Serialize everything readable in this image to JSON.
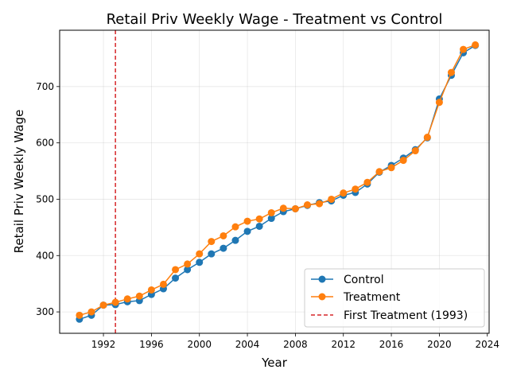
{
  "chart_data": {
    "type": "line",
    "title": "Retail Priv Weekly Wage - Treatment vs Control",
    "xlabel": "Year",
    "ylabel": "Retail Priv Weekly Wage",
    "xlim": [
      1988.35,
      2024.15
    ],
    "ylim": [
      262,
      800
    ],
    "xticks": [
      1992,
      1996,
      2000,
      2004,
      2008,
      2012,
      2016,
      2020,
      2024
    ],
    "yticks": [
      300,
      400,
      500,
      600,
      700
    ],
    "grid": true,
    "legend_position": "lower right",
    "x": [
      1990,
      1991,
      1992,
      1993,
      1994,
      1995,
      1996,
      1997,
      1998,
      1999,
      2000,
      2001,
      2002,
      2003,
      2004,
      2005,
      2006,
      2007,
      2008,
      2009,
      2010,
      2011,
      2012,
      2013,
      2014,
      2015,
      2016,
      2017,
      2018,
      2019,
      2020,
      2021,
      2022,
      2023
    ],
    "series": [
      {
        "name": "Control",
        "color": "#1f77b4",
        "values": [
          287,
          294,
          312,
          313,
          318,
          320,
          331,
          341,
          360,
          375,
          388,
          403,
          413,
          427,
          443,
          452,
          466,
          478,
          483,
          489,
          494,
          497,
          507,
          512,
          527,
          548,
          560,
          573,
          588,
          609,
          678,
          720,
          760,
          773
        ]
      },
      {
        "name": "Treatment",
        "color": "#ff7f0e",
        "values": [
          294,
          300,
          312,
          317,
          323,
          328,
          339,
          349,
          375,
          385,
          403,
          425,
          435,
          451,
          461,
          465,
          476,
          484,
          483,
          490,
          492,
          500,
          511,
          518,
          530,
          549,
          556,
          569,
          586,
          610,
          672,
          725,
          766,
          774
        ]
      }
    ],
    "vline": {
      "x": 1993,
      "label": "First Treatment (1993)",
      "color": "#d62728"
    }
  }
}
